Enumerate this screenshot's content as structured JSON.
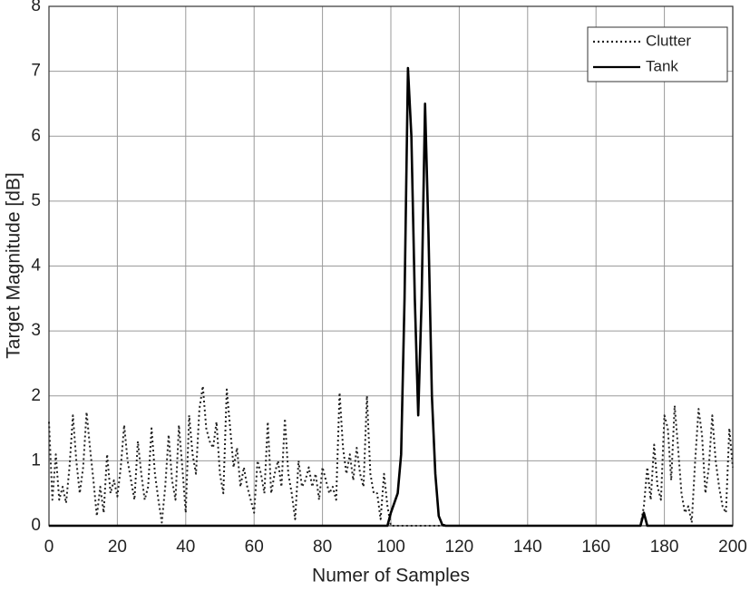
{
  "chart_data": {
    "type": "line",
    "xlabel": "Numer of Samples",
    "ylabel": "Target Magnitude [dB]",
    "xlim": [
      0,
      200
    ],
    "ylim": [
      0,
      8
    ],
    "xticks": [
      0,
      20,
      40,
      60,
      80,
      100,
      120,
      140,
      160,
      180,
      200
    ],
    "yticks": [
      0,
      1,
      2,
      3,
      4,
      5,
      6,
      7,
      8
    ],
    "grid": true,
    "legend": "upper right",
    "x": [
      0,
      1,
      2,
      3,
      4,
      5,
      6,
      7,
      8,
      9,
      10,
      11,
      12,
      13,
      14,
      15,
      16,
      17,
      18,
      19,
      20,
      21,
      22,
      23,
      24,
      25,
      26,
      27,
      28,
      29,
      30,
      31,
      32,
      33,
      34,
      35,
      36,
      37,
      38,
      39,
      40,
      41,
      42,
      43,
      44,
      45,
      46,
      47,
      48,
      49,
      50,
      51,
      52,
      53,
      54,
      55,
      56,
      57,
      58,
      59,
      60,
      61,
      62,
      63,
      64,
      65,
      66,
      67,
      68,
      69,
      70,
      71,
      72,
      73,
      74,
      75,
      76,
      77,
      78,
      79,
      80,
      81,
      82,
      83,
      84,
      85,
      86,
      87,
      88,
      89,
      90,
      91,
      92,
      93,
      94,
      95,
      96,
      97,
      98,
      99,
      100,
      101,
      102,
      103,
      104,
      105,
      106,
      107,
      108,
      109,
      110,
      111,
      112,
      113,
      114,
      115,
      116,
      117,
      118,
      119,
      120,
      121,
      122,
      123,
      124,
      125,
      126,
      127,
      128,
      129,
      130,
      131,
      132,
      133,
      134,
      135,
      136,
      137,
      138,
      139,
      140,
      141,
      142,
      143,
      144,
      145,
      146,
      147,
      148,
      149,
      150,
      151,
      152,
      153,
      154,
      155,
      156,
      157,
      158,
      159,
      160,
      161,
      162,
      163,
      164,
      165,
      166,
      167,
      168,
      169,
      170,
      171,
      172,
      173,
      174,
      175,
      176,
      177,
      178,
      179,
      180,
      181,
      182,
      183,
      184,
      185,
      186,
      187,
      188,
      189,
      190,
      191,
      192,
      193,
      194,
      195,
      196,
      197,
      198,
      199,
      200
    ],
    "series": [
      {
        "name": "Clutter",
        "color": "#222222",
        "linestyle": "dotted",
        "values": [
          1.6,
          0.4,
          1.1,
          0.4,
          0.6,
          0.35,
          0.9,
          1.7,
          1.0,
          0.5,
          0.9,
          1.75,
          1.2,
          0.7,
          0.15,
          0.6,
          0.2,
          1.1,
          0.5,
          0.7,
          0.45,
          0.9,
          1.55,
          1.0,
          0.7,
          0.4,
          1.3,
          0.8,
          0.4,
          0.6,
          1.5,
          0.8,
          0.4,
          0.05,
          0.6,
          1.4,
          0.7,
          0.4,
          1.55,
          0.9,
          0.2,
          1.7,
          1.1,
          0.8,
          1.8,
          2.15,
          1.5,
          1.3,
          1.2,
          1.6,
          0.8,
          0.5,
          2.1,
          1.5,
          0.9,
          1.2,
          0.6,
          0.9,
          0.6,
          0.4,
          0.2,
          1.0,
          0.8,
          0.5,
          1.6,
          0.5,
          0.8,
          1.0,
          0.6,
          1.65,
          0.8,
          0.5,
          0.1,
          1.0,
          0.6,
          0.7,
          0.9,
          0.6,
          0.8,
          0.4,
          0.9,
          0.7,
          0.5,
          0.6,
          0.4,
          2.05,
          1.2,
          0.8,
          1.1,
          0.7,
          1.2,
          0.8,
          0.6,
          2.0,
          0.8,
          0.5,
          0.5,
          0.1,
          0.8,
          0.3,
          0,
          0,
          0,
          0,
          0,
          0,
          0,
          0,
          0,
          0,
          0,
          0,
          0,
          0,
          0,
          0,
          0,
          0,
          0,
          0,
          0,
          0,
          0,
          0,
          0,
          0,
          0,
          0,
          0,
          0,
          0,
          0,
          0,
          0,
          0,
          0,
          0,
          0,
          0,
          0,
          0,
          0,
          0,
          0,
          0,
          0,
          0,
          0,
          0,
          0,
          0,
          0,
          0,
          0,
          0,
          0,
          0,
          0,
          0,
          0,
          0,
          0,
          0,
          0,
          0,
          0,
          0,
          0,
          0,
          0,
          0,
          0,
          0,
          0,
          0.3,
          0.9,
          0.4,
          1.25,
          0.6,
          0.4,
          1.7,
          1.5,
          0.7,
          1.85,
          1.2,
          0.5,
          0.2,
          0.3,
          0.05,
          1.0,
          1.8,
          1.4,
          0.5,
          0.9,
          1.7,
          1.0,
          0.6,
          0.3,
          0.2,
          1.5,
          0.9
        ]
      },
      {
        "name": "Tank",
        "color": "#000000",
        "linestyle": "solid",
        "values": [
          0,
          0,
          0,
          0,
          0,
          0,
          0,
          0,
          0,
          0,
          0,
          0,
          0,
          0,
          0,
          0,
          0,
          0,
          0,
          0,
          0,
          0,
          0,
          0,
          0,
          0,
          0,
          0,
          0,
          0,
          0,
          0,
          0,
          0,
          0,
          0,
          0,
          0,
          0,
          0,
          0,
          0,
          0,
          0,
          0,
          0,
          0,
          0,
          0,
          0,
          0,
          0,
          0,
          0,
          0,
          0,
          0,
          0,
          0,
          0,
          0,
          0,
          0,
          0,
          0,
          0,
          0,
          0,
          0,
          0,
          0,
          0,
          0,
          0,
          0,
          0,
          0,
          0,
          0,
          0,
          0,
          0,
          0,
          0,
          0,
          0,
          0,
          0,
          0,
          0,
          0,
          0,
          0,
          0,
          0,
          0,
          0,
          0,
          0,
          0,
          0.2,
          0.35,
          0.5,
          1.1,
          3.5,
          7.05,
          6.0,
          3.5,
          1.7,
          3.5,
          6.5,
          4.5,
          2.0,
          0.8,
          0.15,
          0.02,
          0,
          0,
          0,
          0,
          0,
          0,
          0,
          0,
          0,
          0,
          0,
          0,
          0,
          0,
          0,
          0,
          0,
          0,
          0,
          0,
          0,
          0,
          0,
          0,
          0,
          0,
          0,
          0,
          0,
          0,
          0,
          0,
          0,
          0,
          0,
          0,
          0,
          0,
          0,
          0,
          0,
          0,
          0,
          0,
          0,
          0,
          0,
          0,
          0,
          0,
          0,
          0,
          0,
          0,
          0,
          0,
          0,
          0,
          0.2,
          0,
          0,
          0,
          0,
          0,
          0,
          0,
          0,
          0,
          0,
          0,
          0,
          0,
          0,
          0,
          0,
          0,
          0,
          0,
          0,
          0,
          0,
          0,
          0,
          0,
          0
        ]
      }
    ]
  }
}
